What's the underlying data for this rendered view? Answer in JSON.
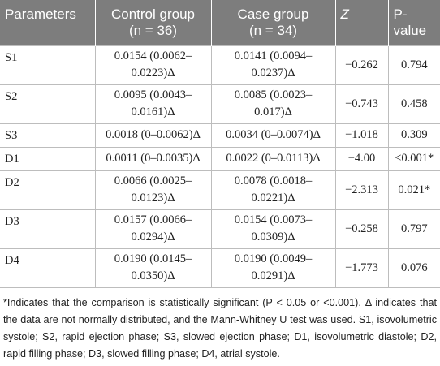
{
  "table": {
    "header": [
      [
        "Parameters"
      ],
      [
        "Control group",
        "(n = 36)"
      ],
      [
        "Case group",
        "(n = 34)"
      ],
      [
        "Z"
      ],
      [
        "P-value"
      ]
    ],
    "rows": [
      [
        "S1",
        "0.0154 (0.0062–0.0223)Δ",
        "0.0141 (0.0094–0.0237)Δ",
        "−0.262",
        "0.794"
      ],
      [
        "S2",
        "0.0095 (0.0043–0.0161)Δ",
        "0.0085 (0.0023–0.017)Δ",
        "−0.743",
        "0.458"
      ],
      [
        "S3",
        "0.0018 (0–0.0062)Δ",
        "0.0034 (0–0.0074)Δ",
        "−1.018",
        "0.309"
      ],
      [
        "D1",
        "0.0011 (0–0.0035)Δ",
        "0.0022 (0–0.0113)Δ",
        "−4.00",
        "<0.001*"
      ],
      [
        "D2",
        "0.0066 (0.0025–0.0123)Δ",
        "0.0078 (0.0018–0.0221)Δ",
        "−2.313",
        "0.021*"
      ],
      [
        "D3",
        "0.0157 (0.0066–0.0294)Δ",
        "0.0154 (0.0073–0.0309)Δ",
        "−0.258",
        "0.797"
      ],
      [
        "D4",
        "0.0190 (0.0145–0.0350)Δ",
        "0.0190 (0.0049–0.0291)Δ",
        "−1.773",
        "0.076"
      ]
    ],
    "footnote": "*Indicates that the comparison is statistically significant (P < 0.05 or <0.001). Δ indicates that the data are not normally distributed, and the Mann-Whitney U test was used. S1, isovolumetric systole; S2, rapid ejection phase; S3, slowed ejection phase; D1, isovolumetric diastole; D2, rapid filling phase; D3, slowed filling phase; D4, atrial systole."
  }
}
